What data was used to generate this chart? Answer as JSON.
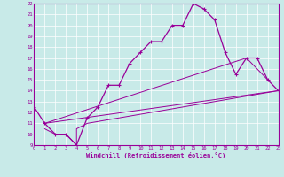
{
  "xlabel": "Windchill (Refroidissement éolien,°C)",
  "bg_color": "#c8eae8",
  "line_color": "#990099",
  "grid_color": "#ffffff",
  "xmin": 0,
  "xmax": 23,
  "ymin": 9,
  "ymax": 22,
  "curve1_x": [
    0,
    1,
    2,
    3,
    4,
    5,
    6,
    7,
    8,
    9,
    10,
    11,
    12,
    13,
    14,
    15,
    16,
    17,
    18,
    19,
    20,
    21,
    22,
    23
  ],
  "curve1_y": [
    12.5,
    11.0,
    10.0,
    10.0,
    9.0,
    11.5,
    12.5,
    14.5,
    14.5,
    16.5,
    17.5,
    18.5,
    18.5,
    20.0,
    20.0,
    22.0,
    21.5,
    20.5,
    17.5,
    15.5,
    17.0,
    17.0,
    15.0,
    14.0
  ],
  "curve2_x": [
    1,
    2,
    3,
    4,
    4,
    5,
    23
  ],
  "curve2_y": [
    10.5,
    10.0,
    10.0,
    9.0,
    10.5,
    11.0,
    14.0
  ],
  "curve3_x": [
    1,
    23
  ],
  "curve3_y": [
    11.0,
    14.0
  ],
  "curve4_x": [
    1,
    20,
    22
  ],
  "curve4_y": [
    11.0,
    17.0,
    15.0
  ]
}
